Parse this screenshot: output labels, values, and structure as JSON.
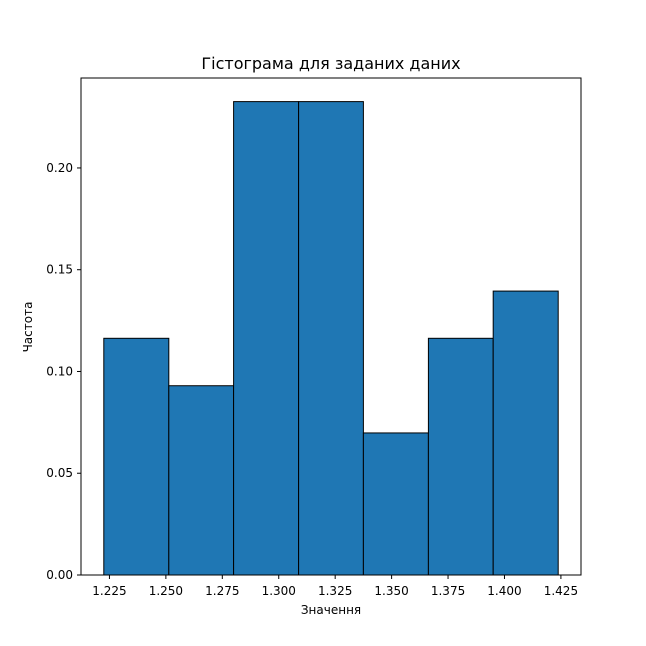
{
  "chart_data": {
    "type": "bar",
    "title": "Гістограма для заданих даних",
    "xlabel": "Значення",
    "ylabel": "Частота",
    "bins": [
      {
        "x0": 1.2225,
        "x1": 1.2513,
        "value": 0.1163
      },
      {
        "x0": 1.2513,
        "x1": 1.28,
        "value": 0.093
      },
      {
        "x0": 1.28,
        "x1": 1.3088,
        "value": 0.2326
      },
      {
        "x0": 1.3088,
        "x1": 1.3375,
        "value": 0.2326
      },
      {
        "x0": 1.3375,
        "x1": 1.3663,
        "value": 0.0698
      },
      {
        "x0": 1.3663,
        "x1": 1.395,
        "value": 0.1163
      },
      {
        "x0": 1.395,
        "x1": 1.4238,
        "value": 0.1395
      }
    ],
    "xlim": [
      1.2124,
      1.4339
    ],
    "ylim": [
      0,
      0.2442
    ],
    "xticks": [
      {
        "value": 1.225,
        "label": "1.225"
      },
      {
        "value": 1.25,
        "label": "1.250"
      },
      {
        "value": 1.275,
        "label": "1.275"
      },
      {
        "value": 1.3,
        "label": "1.300"
      },
      {
        "value": 1.325,
        "label": "1.325"
      },
      {
        "value": 1.35,
        "label": "1.350"
      },
      {
        "value": 1.375,
        "label": "1.375"
      },
      {
        "value": 1.4,
        "label": "1.400"
      },
      {
        "value": 1.425,
        "label": "1.425"
      }
    ],
    "yticks": [
      {
        "value": 0.0,
        "label": "0.00"
      },
      {
        "value": 0.05,
        "label": "0.05"
      },
      {
        "value": 0.1,
        "label": "0.10"
      },
      {
        "value": 0.15,
        "label": "0.15"
      },
      {
        "value": 0.2,
        "label": "0.20"
      }
    ],
    "grid": false,
    "colors": {
      "bar": "#1f77b4",
      "edge": "#000000"
    }
  }
}
